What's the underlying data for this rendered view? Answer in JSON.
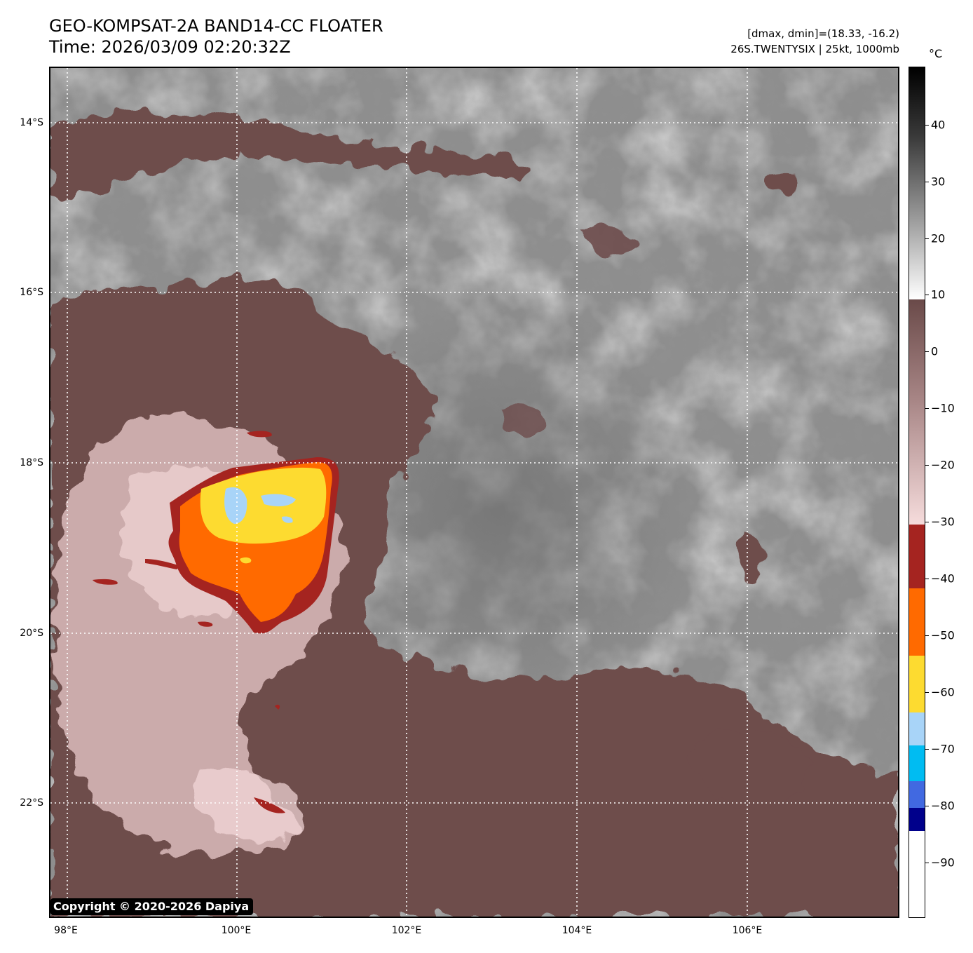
{
  "header": {
    "title_line1": "GEO-KOMPSAT-2A BAND14-CC FLOATER",
    "title_line2": "Time: 2026/03/09 02:20:32Z",
    "info_line1": "[dmax, dmin]=(18.33, -16.2)",
    "info_line2": "26S.TWENTYSIX | 25kt, 1000mb"
  },
  "map": {
    "lat_labels": [
      "14°S",
      "16°S",
      "18°S",
      "20°S",
      "22°S"
    ],
    "lon_labels": [
      "98°E",
      "100°E",
      "102°E",
      "104°E",
      "106°E"
    ],
    "gridline_style": "white dotted"
  },
  "colorbar": {
    "unit": "°C",
    "tick_labels": [
      "40",
      "30",
      "20",
      "10",
      "0",
      "−10",
      "−20",
      "−30",
      "−40",
      "−50",
      "−60",
      "−70",
      "−80",
      "−90"
    ],
    "colors": {
      "warm_top": "#000000",
      "gray_mid": "#8c8c8c",
      "white": "#ffffff",
      "brown_dark": "#6a4a49",
      "pink_light": "#f4d9da",
      "red": "#a52420",
      "orange": "#ff6a00",
      "yellow": "#fddb30",
      "light_blue": "#a8d4f8",
      "cyan": "#00bcf2",
      "blue": "#4169e1",
      "navy": "#00008b",
      "bottom_white": "#ffffff"
    }
  },
  "footer": {
    "copyright": "Copyright © 2020-2026 Dapiya"
  }
}
